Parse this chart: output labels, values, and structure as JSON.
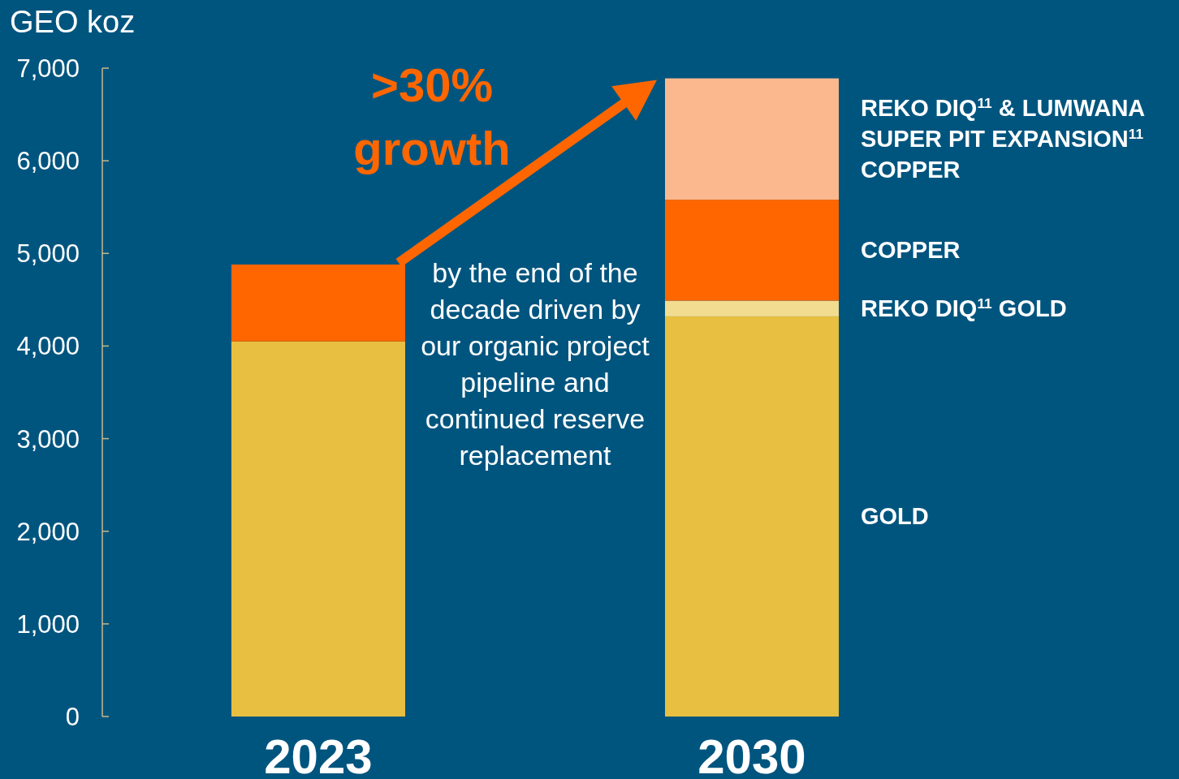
{
  "chart_data": {
    "type": "bar",
    "stacked": true,
    "ylabel": "GEO koz",
    "categories": [
      "2023",
      "2030"
    ],
    "ylim": [
      0,
      7000
    ],
    "yticks": [
      {
        "value": 0,
        "label": "0"
      },
      {
        "value": 1000,
        "label": "1,000"
      },
      {
        "value": 2000,
        "label": "2,000"
      },
      {
        "value": 3000,
        "label": "3,000"
      },
      {
        "value": 4000,
        "label": "4,000"
      },
      {
        "value": 5000,
        "label": "5,000"
      },
      {
        "value": 6000,
        "label": "6,000"
      },
      {
        "value": 7000,
        "label": "7,000"
      }
    ],
    "series": [
      {
        "name": "GOLD",
        "color": "#e8bf40",
        "values": [
          4050,
          4320
        ]
      },
      {
        "name": "REKO DIQ$^{11}$ GOLD",
        "color": "#f2dc90",
        "values": [
          null,
          170
        ]
      },
      {
        "name": "COPPER",
        "color": "#ff6600",
        "values": [
          830,
          1090
        ]
      },
      {
        "name": "REKO DIQ$^{11}$ & LUMWANA\nSUPER PIT EXPANSION$^{11}$\nCOPPER",
        "color": "#fbb88e",
        "values": [
          null,
          1310
        ]
      }
    ],
    "annotations": [
      ">30%\ngrowth",
      "by the end of the\ndecade driven by\nour organic project\npipeline and\ncontinued reserve\nreplacement"
    ]
  }
}
